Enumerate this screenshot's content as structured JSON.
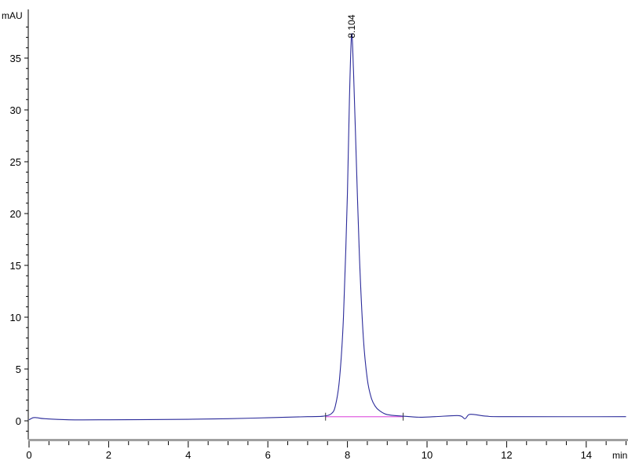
{
  "chart_data": {
    "type": "line",
    "title": "",
    "xlabel": "min",
    "ylabel": "mAU",
    "xlim": [
      0,
      15
    ],
    "ylim": [
      -1.8,
      38.5
    ],
    "x_ticks": [
      0,
      2,
      4,
      6,
      8,
      10,
      12,
      14
    ],
    "y_ticks": [
      0,
      5,
      10,
      15,
      20,
      25,
      30,
      35
    ],
    "grid": false,
    "colors": {
      "trace": "#2b2b9a",
      "integration_baseline": "#e060e0",
      "axis_bar": "#a0a0a0"
    },
    "series": [
      {
        "x": [
          0,
          0.1,
          0.2,
          0.4,
          1,
          2,
          3,
          4,
          5,
          6,
          7,
          7.4,
          7.6,
          7.7,
          7.8,
          7.9,
          8.0,
          8.05,
          8.104,
          8.15,
          8.2,
          8.3,
          8.4,
          8.5,
          8.6,
          8.7,
          8.8,
          9.0,
          9.4,
          9.8,
          10.2,
          10.8,
          10.95,
          11.05,
          11.2,
          11.5,
          12,
          15
        ],
        "y": [
          0.1,
          0.3,
          0.3,
          0.2,
          0.1,
          0.1,
          0.12,
          0.15,
          0.2,
          0.3,
          0.4,
          0.45,
          0.7,
          1.5,
          4,
          10,
          22,
          31,
          37.3,
          34,
          28,
          16,
          8,
          4,
          2.2,
          1.4,
          1.0,
          0.6,
          0.45,
          0.35,
          0.4,
          0.5,
          0.2,
          0.6,
          0.6,
          0.45,
          0.4,
          0.4
        ]
      }
    ],
    "integration_baseline": {
      "x": [
        7.45,
        9.4
      ],
      "y": [
        0.4,
        0.4
      ]
    },
    "annotations": [
      {
        "x": 8.104,
        "y": 37.3,
        "text": "8.104"
      }
    ]
  }
}
